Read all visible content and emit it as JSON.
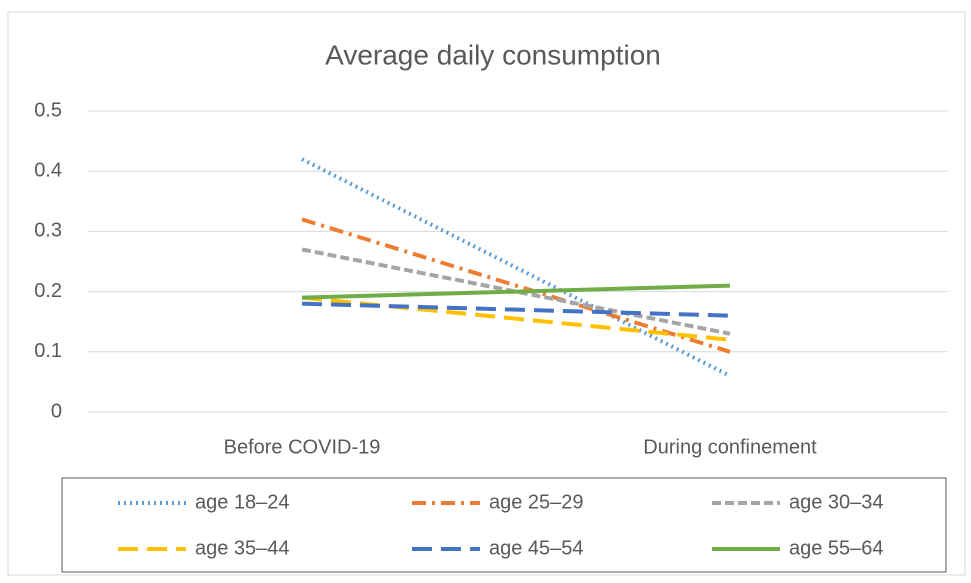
{
  "chart_data": {
    "type": "line",
    "title": "Average daily consumption",
    "categories": [
      "Before COVID-19",
      "During confinement"
    ],
    "series": [
      {
        "name": "age 18–24",
        "color": "#5b9bd5",
        "style": "dotted",
        "values": [
          0.42,
          0.06
        ]
      },
      {
        "name": "age 25–29",
        "color": "#ed7d31",
        "style": "dash-dot",
        "values": [
          0.32,
          0.1
        ]
      },
      {
        "name": "age 30–34",
        "color": "#a5a5a5",
        "style": "dashed",
        "values": [
          0.27,
          0.13
        ]
      },
      {
        "name": "age 35–44",
        "color": "#ffc000",
        "style": "long-dash",
        "values": [
          0.19,
          0.12
        ]
      },
      {
        "name": "age 45–54",
        "color": "#4472c4",
        "style": "long-dash",
        "values": [
          0.18,
          0.16
        ]
      },
      {
        "name": "age 55–64",
        "color": "#70ad47",
        "style": "solid",
        "values": [
          0.19,
          0.21
        ]
      }
    ],
    "ylim": [
      0,
      0.5
    ],
    "yticks": [
      0,
      0.1,
      0.2,
      0.3,
      0.4,
      0.5
    ],
    "grid": true,
    "legend": "bottom"
  }
}
